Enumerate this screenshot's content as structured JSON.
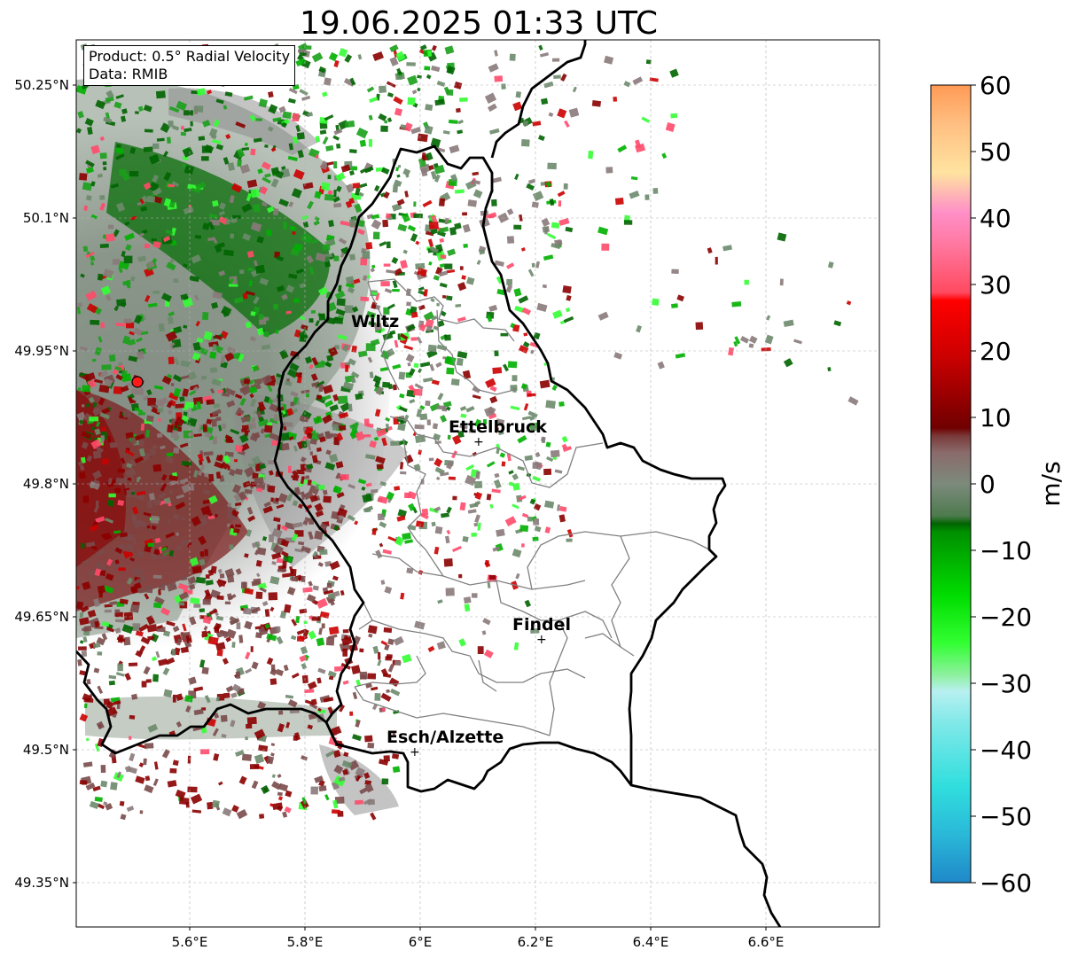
{
  "title": "19.06.2025 01:33 UTC",
  "info": {
    "product": "Product: 0.5° Radial Velocity",
    "data": "Data: RMIB"
  },
  "map": {
    "lon_range": [
      5.4,
      6.8
    ],
    "lat_range": [
      49.3,
      50.3
    ],
    "lat_ticks": [
      {
        "value": 50.25,
        "label": "50.25°N"
      },
      {
        "value": 50.1,
        "label": "50.1°N"
      },
      {
        "value": 49.95,
        "label": "49.95°N"
      },
      {
        "value": 49.8,
        "label": "49.8°N"
      },
      {
        "value": 49.65,
        "label": "49.65°N"
      },
      {
        "value": 49.5,
        "label": "49.5°N"
      },
      {
        "value": 49.35,
        "label": "49.35°N"
      }
    ],
    "lon_ticks": [
      {
        "value": 5.6,
        "label": "5.6°E"
      },
      {
        "value": 5.8,
        "label": "5.8°E"
      },
      {
        "value": 6.0,
        "label": "6°E"
      },
      {
        "value": 6.2,
        "label": "6.2°E"
      },
      {
        "value": 6.4,
        "label": "6.4°E"
      },
      {
        "value": 6.6,
        "label": "6.6°E"
      }
    ],
    "grid": true,
    "radar_site": {
      "lon": 5.505,
      "lat": 49.914
    },
    "cities": [
      {
        "name": "Wiltz",
        "lon": 5.93,
        "lat": 49.966
      },
      {
        "name": "Ettelbruck",
        "lon": 6.104,
        "lat": 49.848
      },
      {
        "name": "Findel",
        "lon": 6.21,
        "lat": 49.627
      },
      {
        "name": "Esch/Alzette",
        "lon": 5.99,
        "lat": 49.499
      }
    ]
  },
  "colorbar": {
    "unit": "m/s",
    "min": -60,
    "max": 60,
    "tick_labels": [
      "60",
      "50",
      "40",
      "30",
      "20",
      "10",
      "0",
      "−10",
      "−20",
      "−30",
      "−40",
      "−50",
      "−60"
    ],
    "colors": {
      "top": "#ff9a55",
      "peach": "#ffc083",
      "yellow": "#ffe3a0",
      "pink": "#ff8fc8",
      "red_light": "#ff4a6a",
      "red": "#ee0000",
      "dark_red": "#8b0000",
      "gray_red": "#8a6a6a",
      "gray_green": "#6b8a6b",
      "dark_green": "#006400",
      "green": "#00dd00",
      "light_green": "#8ff0a0",
      "light_cyan": "#b8f0f0",
      "cyan": "#30dede",
      "blue": "#1f88c8"
    }
  }
}
